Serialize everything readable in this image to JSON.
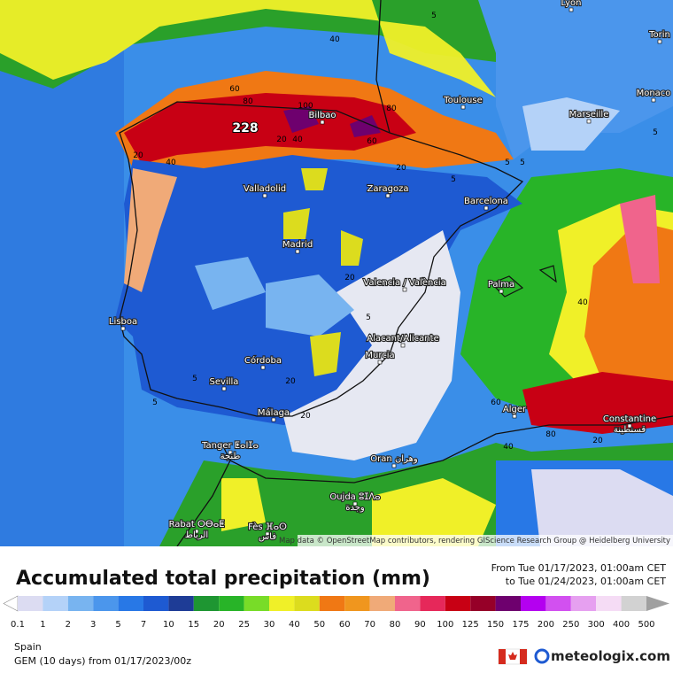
{
  "map": {
    "cities": [
      "Lyon",
      "Torin",
      "Monaco",
      "Toulouse",
      "Marseille",
      "Bilbao",
      "Valladolid",
      "Zaragoza",
      "Barcelona",
      "Madrid",
      "Valencia / València",
      "Palma",
      "Lisboa",
      "Alacant/Alicante",
      "Murcia",
      "Córdoba",
      "Sevilla",
      "Málaga",
      "Alger",
      "Constantine",
      "قسنطينة",
      "Tanger ⵟⴰⵏⵊⴰ",
      "طنجة",
      "Oran وهران",
      "Oujda ⵓⵊⴷⴰ",
      "وجدة",
      "Rabat ⵔⴱⴰⵟ",
      "الرباط",
      "Fès ⴼⴰⵙ",
      "فاس"
    ],
    "contours": [
      40,
      60,
      80,
      100,
      20,
      40,
      80,
      60,
      20,
      40,
      20,
      5,
      5,
      5,
      20,
      5,
      20,
      20,
      5,
      5,
      40,
      60,
      80,
      40,
      20,
      5,
      5
    ],
    "max_value": 228,
    "attribution": "Map data © OpenStreetMap contributors, rendering GIScience Research Group @ Heidelberg University"
  },
  "title": "Accumulated total precipitation (mm)",
  "period": {
    "from": "From Tue 01/17/2023, 01:00am CET",
    "to": "to Tue 01/24/2023, 01:00am CET"
  },
  "legend": {
    "ticks": [
      0.1,
      1,
      2,
      3,
      5,
      7,
      10,
      15,
      20,
      25,
      30,
      40,
      50,
      60,
      70,
      80,
      90,
      100,
      125,
      150,
      175,
      200,
      250,
      300,
      400,
      500
    ],
    "colors": [
      "#dcdcf2",
      "#b4d2f8",
      "#78b4f0",
      "#4b96ec",
      "#2878e6",
      "#1e5ad2",
      "#1e3c96",
      "#1e9632",
      "#28b428",
      "#78dc28",
      "#f0f028",
      "#dcdc1e",
      "#f07814",
      "#f0961e",
      "#f0aa78",
      "#f0648c",
      "#e6285a",
      "#c80014",
      "#960028",
      "#6e006e",
      "#b400f0",
      "#d250f0",
      "#e6a0f0",
      "#f5dcf5",
      "#d2d2d2"
    ]
  },
  "footer": {
    "region": "Spain",
    "model": "GEM (10 days) from 01/17/2023/00z",
    "brand": "meteologix.com"
  }
}
